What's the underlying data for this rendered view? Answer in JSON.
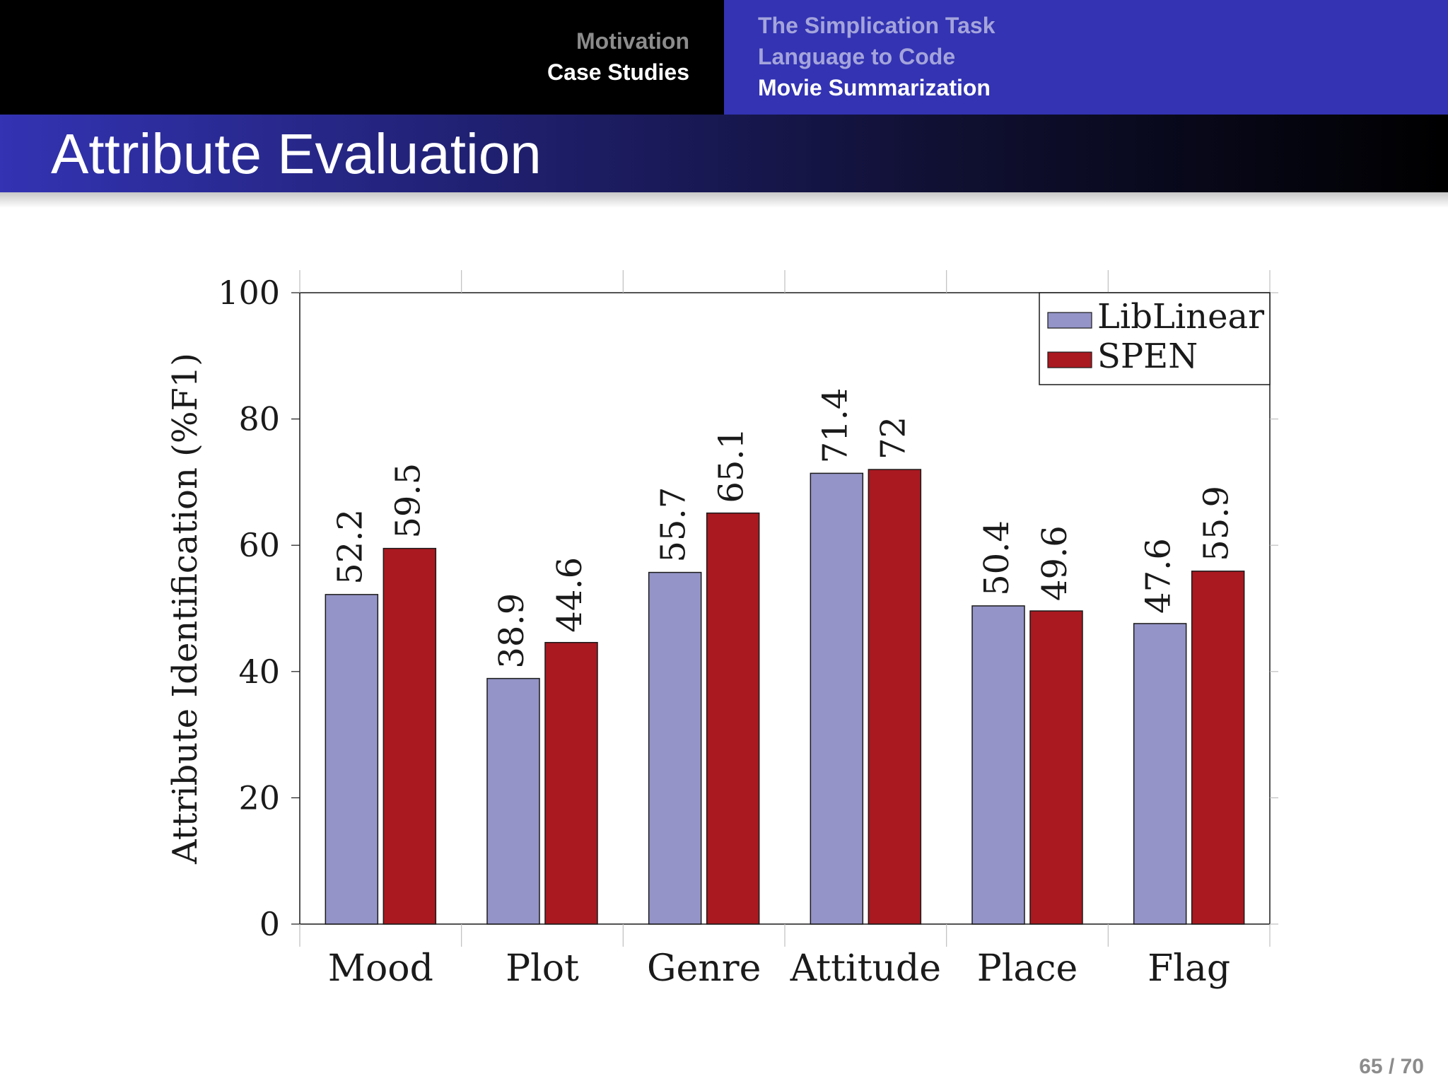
{
  "nav": {
    "sections": [
      "Motivation",
      "Case Studies"
    ],
    "subsections": [
      "The Simplication Task",
      "Language to Code",
      "Movie Summarization"
    ]
  },
  "slide": {
    "title": "Attribute Evaluation",
    "page": "65 / 70"
  },
  "colors": {
    "liblinear": "#9494c8",
    "spen": "#aa1920",
    "header_blue": "#3333b3"
  },
  "chart_data": {
    "type": "bar",
    "categories": [
      "Mood",
      "Plot",
      "Genre",
      "Attitude",
      "Place",
      "Flag"
    ],
    "series": [
      {
        "name": "LibLinear",
        "values": [
          52.2,
          38.9,
          55.7,
          71.4,
          50.4,
          47.6
        ],
        "labels": [
          "52.2",
          "38.9",
          "55.7",
          "71.4",
          "50.4",
          "47.6"
        ]
      },
      {
        "name": "SPEN",
        "values": [
          59.5,
          44.6,
          65.1,
          72,
          49.6,
          55.9
        ],
        "labels": [
          "59.5",
          "44.6",
          "65.1",
          "72",
          "49.6",
          "55.9"
        ]
      }
    ],
    "ylabel": "Attribute Identification (%F1)",
    "xlabel": "",
    "ylim": [
      0,
      100
    ],
    "yticks": [
      0,
      20,
      40,
      60,
      80,
      100
    ],
    "legend_position": "top-right",
    "grid": false
  }
}
